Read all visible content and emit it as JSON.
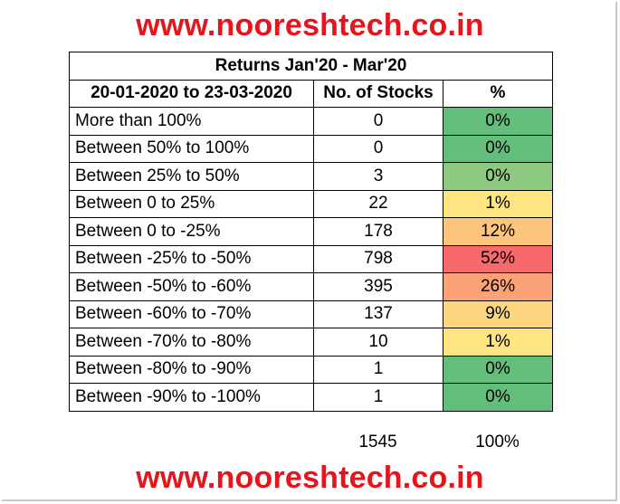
{
  "site_banner_top": "www.nooreshtech.co.in",
  "site_banner_bottom": "www.nooreshtech.co.in",
  "table": {
    "title": "Returns Jan'20 - Mar'20",
    "headers": [
      "20-01-2020 to 23-03-2020",
      "No. of Stocks",
      "%"
    ],
    "rows": [
      {
        "range": "More than 100%",
        "count": "0",
        "pct": "0%",
        "color": "#63be7b"
      },
      {
        "range": "Between 50% to 100%",
        "count": "0",
        "pct": "0%",
        "color": "#63be7b"
      },
      {
        "range": "Between 25% to 50%",
        "count": "3",
        "pct": "0%",
        "color": "#8dc97e"
      },
      {
        "range": "Between 0 to 25%",
        "count": "22",
        "pct": "1%",
        "color": "#fee582"
      },
      {
        "range": "Between 0 to -25%",
        "count": "178",
        "pct": "12%",
        "color": "#fdc47c"
      },
      {
        "range": "Between -25% to -50%",
        "count": "798",
        "pct": "52%",
        "color": "#f8696b"
      },
      {
        "range": "Between -50% to -60%",
        "count": "395",
        "pct": "26%",
        "color": "#fba276"
      },
      {
        "range": "Between -60% to -70%",
        "count": "137",
        "pct": "9%",
        "color": "#fed680"
      },
      {
        "range": "Between -70% to -80%",
        "count": "10",
        "pct": "1%",
        "color": "#fee582"
      },
      {
        "range": "Between -80% to -90%",
        "count": "1",
        "pct": "0%",
        "color": "#63be7b"
      },
      {
        "range": "Between -90% to -100%",
        "count": "1",
        "pct": "0%",
        "color": "#63be7b"
      }
    ],
    "total_count": "1545",
    "total_pct": "100%"
  }
}
